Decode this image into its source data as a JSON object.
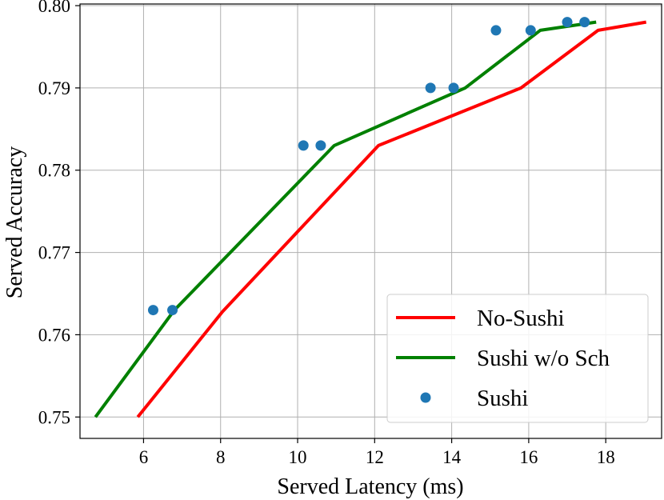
{
  "chart_data": {
    "type": "line",
    "xlabel": "Served Latency (ms)",
    "ylabel": "Served Accuracy",
    "xlim": [
      4.35,
      19.45
    ],
    "ylim": [
      0.7474,
      0.8002
    ],
    "xticks": [
      6,
      8,
      10,
      12,
      14,
      16,
      18
    ],
    "yticks": [
      0.75,
      0.76,
      0.77,
      0.78,
      0.79,
      0.8
    ],
    "ytick_labels": [
      "0.75",
      "0.76",
      "0.77",
      "0.78",
      "0.79",
      "0.80"
    ],
    "grid": true,
    "legend_position": "lower-right",
    "series": [
      {
        "name": "No-Sushi",
        "kind": "line",
        "color": "#ff0000",
        "x": [
          5.85,
          8.05,
          12.1,
          15.8,
          17.8,
          19.05
        ],
        "y": [
          0.75,
          0.7628,
          0.783,
          0.79,
          0.797,
          0.798
        ]
      },
      {
        "name": "Sushi w/o Sch",
        "kind": "line",
        "color": "#008000",
        "x": [
          4.75,
          6.8,
          10.95,
          14.35,
          16.3,
          17.75
        ],
        "y": [
          0.75,
          0.763,
          0.783,
          0.79,
          0.797,
          0.798
        ]
      },
      {
        "name": "Sushi",
        "kind": "scatter",
        "color": "#1f77b4",
        "x": [
          6.25,
          6.75,
          10.15,
          10.6,
          13.45,
          14.05,
          15.15,
          16.05,
          17.0,
          17.45
        ],
        "y": [
          0.763,
          0.763,
          0.783,
          0.783,
          0.79,
          0.79,
          0.797,
          0.797,
          0.798,
          0.798
        ]
      }
    ]
  }
}
